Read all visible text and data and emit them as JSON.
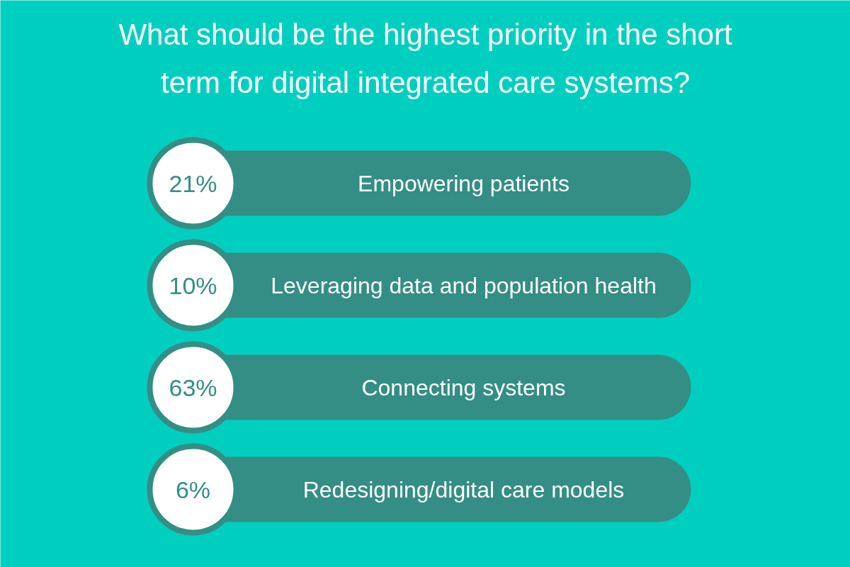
{
  "chart_data": {
    "type": "other",
    "title": "What should be the highest priority in the short term for digital integrated care systems?",
    "categories": [
      "Empowering patients",
      "Leveraging data and population health",
      "Connecting systems",
      "Redesigning/digital care models"
    ],
    "values": [
      21,
      10,
      63,
      6
    ],
    "value_labels": [
      "21%",
      "10%",
      "63%",
      "6%"
    ],
    "colors": [
      "#348e85",
      "#348e85",
      "#348e85",
      "#348e85"
    ]
  }
}
